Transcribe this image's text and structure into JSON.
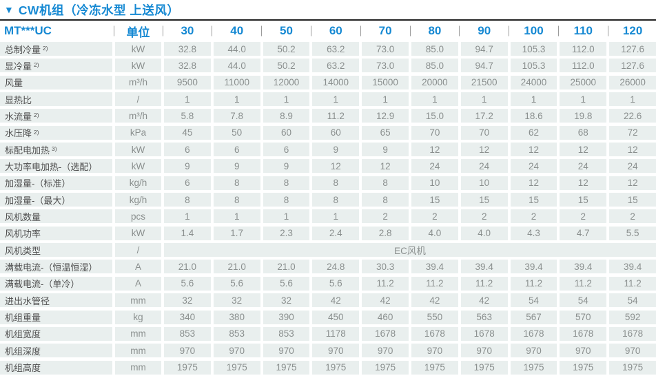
{
  "title": {
    "marker": "▼",
    "text": "CW机组（冷冻水型 上送风）"
  },
  "colors": {
    "accent_blue": "#1689d3",
    "cell_background": "#e9efee",
    "label_text": "#4e4e4e",
    "value_text": "#8a8f8e",
    "title_rule": "#222222"
  },
  "table": {
    "model_header": "MT***UC",
    "unit_header": "单位",
    "columns": [
      "30",
      "40",
      "50",
      "60",
      "70",
      "80",
      "90",
      "100",
      "110",
      "120"
    ],
    "rows": [
      {
        "label": "总制冷量",
        "sup": "2)",
        "unit": "kW",
        "values": [
          "32.8",
          "44.0",
          "50.2",
          "63.2",
          "73.0",
          "85.0",
          "94.7",
          "105.3",
          "112.0",
          "127.6"
        ]
      },
      {
        "label": "显冷量",
        "sup": "2)",
        "unit": "kW",
        "values": [
          "32.8",
          "44.0",
          "50.2",
          "63.2",
          "73.0",
          "85.0",
          "94.7",
          "105.3",
          "112.0",
          "127.6"
        ]
      },
      {
        "label": "风量",
        "sup": "",
        "unit": "m³/h",
        "values": [
          "9500",
          "11000",
          "12000",
          "14000",
          "15000",
          "20000",
          "21500",
          "24000",
          "25000",
          "26000"
        ]
      },
      {
        "label": "显热比",
        "sup": "",
        "unit": "/",
        "values": [
          "1",
          "1",
          "1",
          "1",
          "1",
          "1",
          "1",
          "1",
          "1",
          "1"
        ]
      },
      {
        "label": "水流量",
        "sup": "2)",
        "unit": "m³/h",
        "values": [
          "5.8",
          "7.8",
          "8.9",
          "11.2",
          "12.9",
          "15.0",
          "17.2",
          "18.6",
          "19.8",
          "22.6"
        ]
      },
      {
        "label": "水压降",
        "sup": "2)",
        "unit": "kPa",
        "values": [
          "45",
          "50",
          "60",
          "60",
          "65",
          "70",
          "70",
          "62",
          "68",
          "72"
        ]
      },
      {
        "label": "标配电加热",
        "sup": "3)",
        "unit": "kW",
        "values": [
          "6",
          "6",
          "6",
          "9",
          "9",
          "12",
          "12",
          "12",
          "12",
          "12"
        ]
      },
      {
        "label": "大功率电加热-（选配）",
        "sup": "",
        "unit": "kW",
        "values": [
          "9",
          "9",
          "9",
          "12",
          "12",
          "24",
          "24",
          "24",
          "24",
          "24"
        ]
      },
      {
        "label": "加湿量-（标准）",
        "sup": "",
        "unit": "kg/h",
        "values": [
          "6",
          "8",
          "8",
          "8",
          "8",
          "10",
          "10",
          "12",
          "12",
          "12"
        ]
      },
      {
        "label": "加湿量-（最大）",
        "sup": "",
        "unit": "kg/h",
        "values": [
          "8",
          "8",
          "8",
          "8",
          "8",
          "15",
          "15",
          "15",
          "15",
          "15"
        ]
      },
      {
        "label": "风机数量",
        "sup": "",
        "unit": "pcs",
        "values": [
          "1",
          "1",
          "1",
          "1",
          "2",
          "2",
          "2",
          "2",
          "2",
          "2"
        ]
      },
      {
        "label": "风机功率",
        "sup": "",
        "unit": "kW",
        "values": [
          "1.4",
          "1.7",
          "2.3",
          "2.4",
          "2.8",
          "4.0",
          "4.0",
          "4.3",
          "4.7",
          "5.5"
        ]
      },
      {
        "label": "风机类型",
        "sup": "",
        "unit": "/",
        "merged": "EC风机"
      },
      {
        "label": "满载电流-（恒温恒湿）",
        "sup": "",
        "unit": "A",
        "values": [
          "21.0",
          "21.0",
          "21.0",
          "24.8",
          "30.3",
          "39.4",
          "39.4",
          "39.4",
          "39.4",
          "39.4"
        ]
      },
      {
        "label": "满载电流-（单冷）",
        "sup": "",
        "unit": "A",
        "values": [
          "5.6",
          "5.6",
          "5.6",
          "5.6",
          "11.2",
          "11.2",
          "11.2",
          "11.2",
          "11.2",
          "11.2"
        ]
      },
      {
        "label": "进出水管径",
        "sup": "",
        "unit": "mm",
        "values": [
          "32",
          "32",
          "32",
          "42",
          "42",
          "42",
          "42",
          "54",
          "54",
          "54"
        ]
      },
      {
        "label": "机组重量",
        "sup": "",
        "unit": "kg",
        "values": [
          "340",
          "380",
          "390",
          "450",
          "460",
          "550",
          "563",
          "567",
          "570",
          "592"
        ]
      },
      {
        "label": "机组宽度",
        "sup": "",
        "unit": "mm",
        "values": [
          "853",
          "853",
          "853",
          "1178",
          "1678",
          "1678",
          "1678",
          "1678",
          "1678",
          "1678"
        ]
      },
      {
        "label": "机组深度",
        "sup": "",
        "unit": "mm",
        "values": [
          "970",
          "970",
          "970",
          "970",
          "970",
          "970",
          "970",
          "970",
          "970",
          "970"
        ]
      },
      {
        "label": "机组高度",
        "sup": "",
        "unit": "mm",
        "values": [
          "1975",
          "1975",
          "1975",
          "1975",
          "1975",
          "1975",
          "1975",
          "1975",
          "1975",
          "1975"
        ]
      }
    ]
  }
}
